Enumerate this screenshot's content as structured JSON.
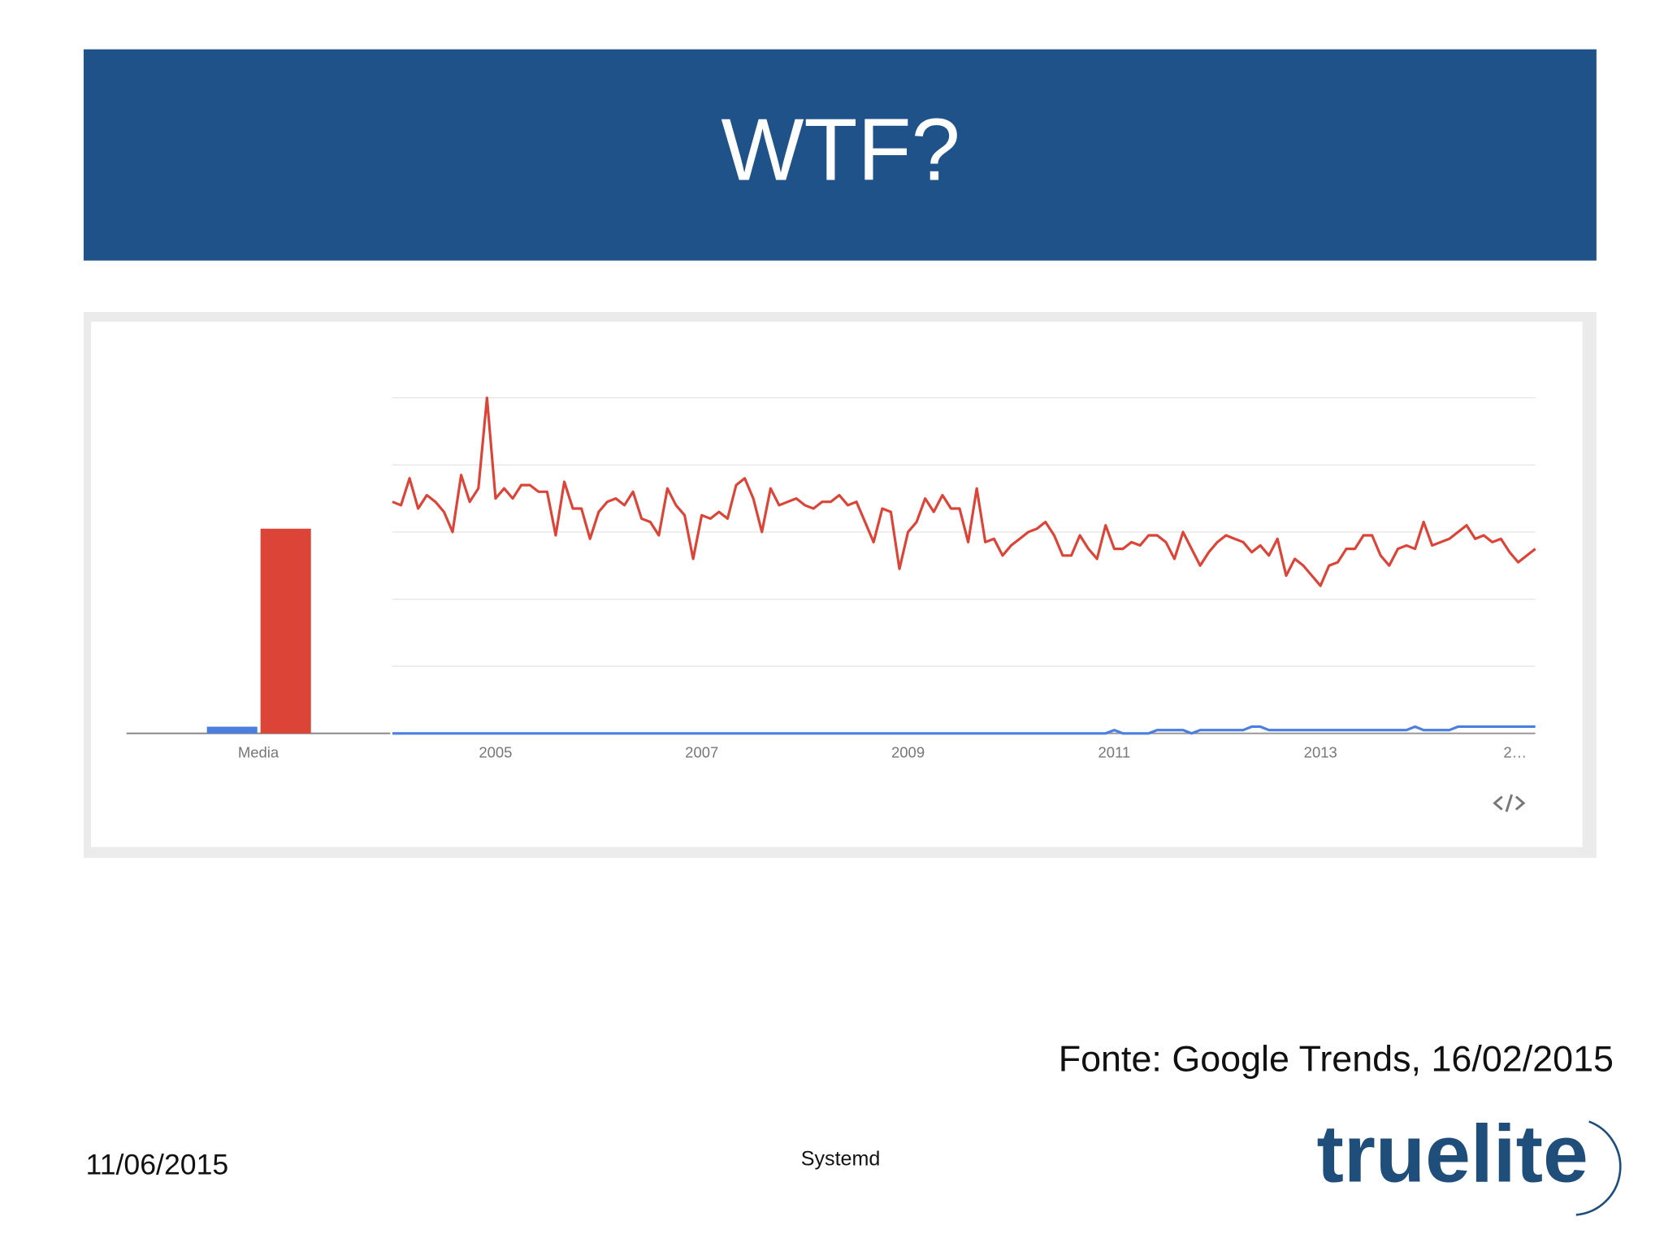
{
  "title": "WTF?",
  "source": "Fonte: Google Trends, 16/02/2015",
  "footer": {
    "date": "11/06/2015",
    "center": "Systemd",
    "logo": "truelite"
  },
  "chart_data": [
    {
      "type": "bar",
      "categories": [
        "Media"
      ],
      "series": [
        {
          "color": "#4a7fe0",
          "values": [
            2
          ]
        },
        {
          "color": "#db4437",
          "values": [
            61
          ]
        }
      ],
      "ylim": [
        0,
        100
      ]
    },
    {
      "type": "line",
      "categories": [
        null,
        null,
        null,
        null,
        null,
        null,
        null,
        null,
        null,
        null,
        null,
        null,
        "2005",
        null,
        null,
        null,
        null,
        null,
        null,
        null,
        null,
        null,
        null,
        null,
        null,
        null,
        null,
        null,
        null,
        null,
        null,
        null,
        null,
        null,
        null,
        null,
        "2007",
        null,
        null,
        null,
        null,
        null,
        null,
        null,
        null,
        null,
        null,
        null,
        null,
        null,
        null,
        null,
        null,
        null,
        null,
        null,
        null,
        null,
        null,
        null,
        "2009",
        null,
        null,
        null,
        null,
        null,
        null,
        null,
        null,
        null,
        null,
        null,
        null,
        null,
        null,
        null,
        null,
        null,
        null,
        null,
        null,
        null,
        null,
        null,
        "2011",
        null,
        null,
        null,
        null,
        null,
        null,
        null,
        null,
        null,
        null,
        null,
        null,
        null,
        null,
        null,
        null,
        null,
        null,
        null,
        null,
        null,
        null,
        null,
        "2013",
        null,
        null,
        null,
        null,
        null,
        null,
        null,
        null,
        null,
        null,
        null,
        null,
        null,
        null,
        null,
        null,
        null,
        null,
        null,
        null,
        null,
        null,
        null,
        "2…",
        null
      ],
      "series": [
        {
          "color": "#db4437",
          "values": [
            69,
            68,
            76,
            67,
            71,
            69,
            66,
            60,
            77,
            69,
            73,
            100,
            70,
            73,
            70,
            74,
            74,
            72,
            72,
            59,
            75,
            67,
            67,
            58,
            66,
            69,
            70,
            68,
            72,
            64,
            63,
            59,
            73,
            68,
            65,
            52,
            65,
            64,
            66,
            64,
            74,
            76,
            70,
            60,
            73,
            68,
            69,
            70,
            68,
            67,
            69,
            69,
            71,
            68,
            69,
            63,
            57,
            67,
            66,
            49,
            60,
            63,
            70,
            66,
            71,
            67,
            67,
            57,
            73,
            57,
            58,
            53,
            56,
            58,
            60,
            61,
            63,
            59,
            53,
            53,
            59,
            55,
            52,
            62,
            55,
            55,
            57,
            56,
            59,
            59,
            57,
            52,
            60,
            55,
            50,
            54,
            57,
            59,
            58,
            57,
            54,
            56,
            53,
            58,
            47,
            52,
            50,
            47,
            44,
            50,
            51,
            55,
            55,
            59,
            59,
            53,
            50,
            55,
            56,
            55,
            63,
            56,
            57,
            58,
            60,
            62,
            58,
            59,
            57,
            58,
            54,
            51,
            53,
            55
          ]
        },
        {
          "color": "#4a7fe0",
          "values": [
            0,
            0,
            0,
            0,
            0,
            0,
            0,
            0,
            0,
            0,
            0,
            0,
            0,
            0,
            0,
            0,
            0,
            0,
            0,
            0,
            0,
            0,
            0,
            0,
            0,
            0,
            0,
            0,
            0,
            0,
            0,
            0,
            0,
            0,
            0,
            0,
            0,
            0,
            0,
            0,
            0,
            0,
            0,
            0,
            0,
            0,
            0,
            0,
            0,
            0,
            0,
            0,
            0,
            0,
            0,
            0,
            0,
            0,
            0,
            0,
            0,
            0,
            0,
            0,
            0,
            0,
            0,
            0,
            0,
            0,
            0,
            0,
            0,
            0,
            0,
            0,
            0,
            0,
            0,
            0,
            0,
            0,
            0,
            0,
            1,
            0,
            0,
            0,
            0,
            1,
            1,
            1,
            1,
            0,
            1,
            1,
            1,
            1,
            1,
            1,
            2,
            2,
            1,
            1,
            1,
            1,
            1,
            1,
            1,
            1,
            1,
            1,
            1,
            1,
            1,
            1,
            1,
            1,
            1,
            2,
            1,
            1,
            1,
            1,
            2,
            2,
            2,
            2,
            2,
            2,
            2,
            2,
            2,
            2
          ]
        }
      ],
      "ylim": [
        0,
        100
      ],
      "yticks": [
        0,
        20,
        40,
        60,
        80,
        100
      ],
      "grid": true
    }
  ]
}
